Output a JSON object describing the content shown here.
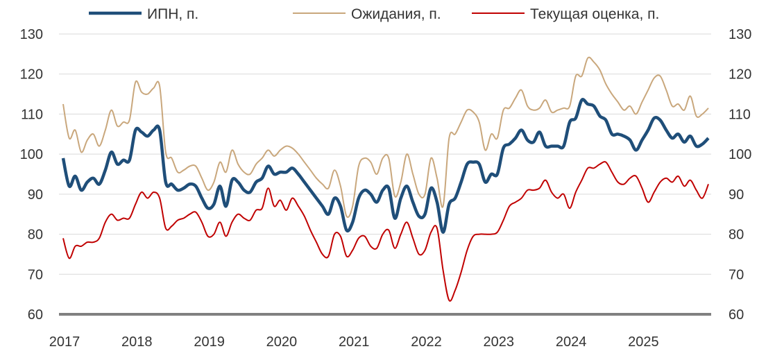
{
  "chart_data": {
    "type": "line",
    "title": "",
    "xlabel": "",
    "ylabel": "",
    "ylim": [
      60,
      130
    ],
    "yticks": [
      60,
      70,
      80,
      90,
      100,
      110,
      120,
      130
    ],
    "ytick_labels": [
      "60",
      "70",
      "80",
      "90",
      "100",
      "110",
      "120",
      "130"
    ],
    "x_start": "2017-01",
    "x_frequency": "monthly",
    "xtick_labels": [
      "2017",
      "2018",
      "2019",
      "2020",
      "2021",
      "2022",
      "2023",
      "2024",
      "2025"
    ],
    "legend_position": "top",
    "grid": true,
    "series": [
      {
        "name": "ИПН, п.",
        "color": "#1f4e79",
        "width": 4.5,
        "values": [
          99,
          92,
          94.5,
          91,
          93,
          94,
          92.5,
          96,
          100.5,
          97.5,
          98.5,
          98.5,
          106,
          105.5,
          104.5,
          106,
          106,
          93,
          92.5,
          91,
          91.5,
          92.5,
          92,
          89,
          86.5,
          87.5,
          92,
          87,
          93.5,
          93,
          91,
          90.5,
          93,
          94,
          97,
          95,
          95.5,
          95.5,
          96.5,
          95,
          93,
          91,
          89,
          87,
          85,
          89,
          87,
          81,
          83,
          89,
          91,
          90,
          88,
          91,
          91.5,
          84,
          89,
          92,
          88,
          84.5,
          85,
          91.5,
          88,
          80.5,
          87.5,
          89,
          93,
          97.5,
          98,
          97.5,
          93,
          95,
          95,
          101.5,
          102.5,
          104,
          106,
          103.5,
          103,
          105.5,
          102,
          102,
          102,
          102,
          108,
          109,
          113.5,
          112.5,
          112,
          109.5,
          108.5,
          105,
          105,
          104.5,
          103.5,
          101,
          103.5,
          106,
          109,
          108.5,
          106,
          104,
          105,
          103,
          104.5,
          102,
          102.5,
          104
        ]
      },
      {
        "name": "Ожидания, п.",
        "color": "#c9a77c",
        "width": 2,
        "values": [
          112.5,
          104,
          106,
          100.5,
          103.5,
          105,
          102,
          106,
          111,
          107,
          108,
          108.5,
          118,
          115.5,
          115,
          116.5,
          117,
          100.5,
          99,
          95.5,
          96,
          97,
          97,
          94,
          91,
          93,
          98,
          95.5,
          101,
          97.5,
          95.5,
          95,
          97.5,
          99,
          101,
          99.5,
          101,
          102,
          101.5,
          100,
          98,
          96,
          94,
          92.5,
          91.5,
          96,
          92,
          84.5,
          87,
          97,
          99,
          98,
          95,
          99,
          99,
          89.5,
          93,
          100,
          95,
          90,
          90,
          99,
          94,
          87,
          104,
          105,
          108,
          111,
          110.5,
          108,
          101,
          105,
          104,
          111,
          111.5,
          114,
          116,
          112,
          111,
          111.5,
          113.5,
          110.5,
          111,
          111.5,
          112,
          119.5,
          119.5,
          124,
          123,
          121,
          117.5,
          115,
          113,
          111,
          112,
          110,
          113,
          116,
          119,
          119.5,
          116,
          112,
          112.5,
          111,
          114.5,
          109.5,
          110,
          111.5
        ]
      },
      {
        "name": "Текущая оценка, п.",
        "color": "#c00000",
        "width": 2,
        "values": [
          79,
          74,
          77,
          77,
          78,
          78,
          79,
          83,
          85,
          83.5,
          84,
          84,
          87.5,
          90.5,
          89,
          90.5,
          89,
          81.5,
          82,
          83.5,
          84,
          85,
          85.5,
          83,
          79.5,
          80,
          83,
          79.5,
          83,
          85,
          84,
          83.5,
          86,
          86.5,
          91.5,
          87,
          88.5,
          86,
          89,
          87,
          84.5,
          81,
          78,
          75,
          74.5,
          80,
          79.5,
          74.5,
          76,
          79,
          79.5,
          77,
          76.5,
          80,
          81,
          76.5,
          80,
          83,
          79,
          75,
          76,
          80.5,
          81.5,
          71,
          63.5,
          66,
          70.5,
          76,
          79.5,
          80,
          80,
          80,
          80.5,
          83.5,
          87,
          88,
          89,
          91,
          91,
          91.5,
          93.5,
          90.5,
          89,
          90,
          86.5,
          90.5,
          93.5,
          96.5,
          96.5,
          97.5,
          98,
          95.5,
          93,
          92.5,
          94,
          94.5,
          91.5,
          88,
          90.5,
          93,
          94,
          93,
          94.5,
          92,
          93.5,
          91,
          89,
          92.5
        ]
      }
    ]
  }
}
